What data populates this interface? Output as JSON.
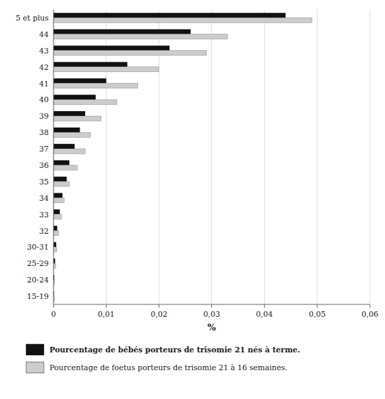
{
  "chart_data": {
    "type": "bar",
    "orientation": "horizontal",
    "categories": [
      "5 et plus",
      "44",
      "43",
      "42",
      "41",
      "40",
      "39",
      "38",
      "37",
      "36",
      "35",
      "34",
      "33",
      "32",
      "30-31",
      "25-29",
      "20-24",
      "15-19"
    ],
    "series": [
      {
        "name": "Pourcentage de bébés porteurs de trisomie 21 nés à terme.",
        "color": "#111111",
        "values": [
          0.044,
          0.026,
          0.022,
          0.014,
          0.01,
          0.008,
          0.006,
          0.005,
          0.004,
          0.003,
          0.0025,
          0.0017,
          0.0012,
          0.0007,
          0.0005,
          0.0003,
          0.00015,
          0.0001
        ]
      },
      {
        "name": "Pourcentage de foetus porteurs de trisomie 21 à 16 semaines.",
        "color": "#cccccc",
        "values": [
          0.049,
          0.033,
          0.029,
          0.02,
          0.016,
          0.012,
          0.009,
          0.007,
          0.006,
          0.0045,
          0.003,
          0.002,
          0.0015,
          0.001,
          0.0006,
          0.0004,
          0.0002,
          0.00015
        ]
      }
    ],
    "xlabel": "%",
    "xlim": [
      0,
      0.06
    ],
    "xticks": [
      0,
      {
        "value": 0.01,
        "label": "0,01"
      },
      {
        "value": 0.02,
        "label": "0,02"
      },
      {
        "value": 0.03,
        "label": "0,03"
      },
      {
        "value": 0.04,
        "label": "0,04"
      },
      {
        "value": 0.05,
        "label": "0,05"
      },
      {
        "value": 0.06,
        "label": "0,06"
      }
    ],
    "grid": true,
    "legend": "bottom"
  }
}
